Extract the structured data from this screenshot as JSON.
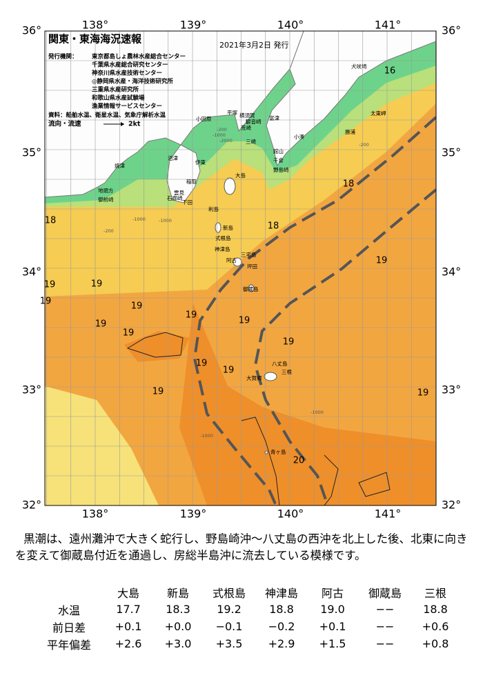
{
  "map": {
    "title": "関東・東海海況速報",
    "issued": "2021年3月2日 発行",
    "agencies_label": "発行機関：",
    "agencies": [
      "東京都島しょ農林水産総合センター",
      "千葉県水産総合研究センター",
      "神奈川県水産技術センター",
      "◎静岡県水産・海洋技術研究所",
      "三重県水産研究所",
      "和歌山県水産試験場",
      "漁業情報サービスセンター"
    ],
    "sources": "資料：船舶水温、衛星水温、気象庁解析水温",
    "current_label": "流向・流速",
    "current_scale": "2kt",
    "longitudes": [
      "138°",
      "139°",
      "140°",
      "141°"
    ],
    "latitudes": [
      "36°",
      "35°",
      "34°",
      "33°",
      "32°"
    ],
    "places": [
      "犬吠埼",
      "太東岬",
      "勝浦",
      "小湊",
      "館山",
      "千倉",
      "野島崎",
      "富津",
      "観音崎",
      "横須賀",
      "平塚",
      "小田原",
      "荒崎",
      "三崎",
      "伊東",
      "沼津",
      "焼津",
      "地頭方",
      "御前崎",
      "稲取",
      "下田",
      "雲見",
      "石廊崎",
      "大島",
      "利島",
      "新島",
      "式根島",
      "神津島",
      "三宅島",
      "阿古",
      "坪田",
      "御蔵島",
      "八丈島",
      "三根",
      "大賀郷",
      "青ヶ島"
    ],
    "isotherm_labels": [
      16,
      18,
      18,
      18,
      19,
      19,
      19,
      19,
      19,
      19,
      19,
      19,
      19,
      19,
      19,
      19,
      19,
      19,
      20
    ],
    "depth_labels": [
      "-200",
      "-1000",
      "-2000",
      "-200",
      "-1000",
      "-200",
      "-1000",
      "-1000",
      "-1000"
    ]
  },
  "description": "黒潮は、遠州灘沖で大きく蛇行し、野島崎沖～八丈島の西沖を北上した後、北東に向きを変えて御蔵島付近を通過し、房総半島沖に流去している模様です。",
  "table": {
    "header": [
      "大島",
      "新島",
      "式根島",
      "神津島",
      "阿古",
      "御蔵島",
      "三根"
    ],
    "rows": [
      [
        "水温",
        "17.7",
        "18.3",
        "19.2",
        "18.8",
        "19.0",
        "−−",
        "18.8"
      ],
      [
        "前日差",
        "+0.1",
        "+0.0",
        "−0.1",
        "−0.2",
        "+0.1",
        "−−",
        "+0.6"
      ],
      [
        "平年偏差",
        "+2.6",
        "+3.0",
        "+3.5",
        "+2.9",
        "+1.5",
        "−−",
        "+0.8"
      ]
    ]
  }
}
